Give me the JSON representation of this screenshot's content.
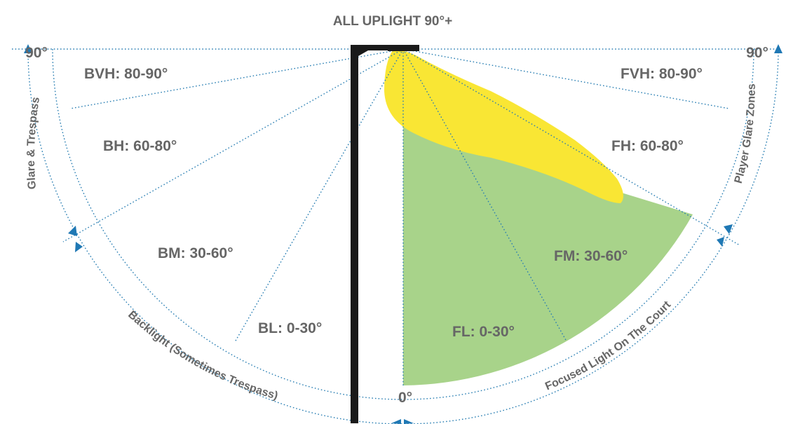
{
  "title": "ALL UPLIGHT 90°+",
  "colors": {
    "pole": "#1a1a1a",
    "focused_light": "#a8d38a",
    "glare_light": "#f9e634",
    "guide_lines": "#2a7fb3",
    "arrows": "#1f78b4",
    "text": "#666666"
  },
  "angles": {
    "left_90": "90°",
    "right_90": "90°",
    "bottom_0": "0°"
  },
  "back_zones": {
    "bvh": "BVH: 80-90°",
    "bh": "BH: 60-80°",
    "bm": "BM: 30-60°",
    "bl": "BL: 0-30°"
  },
  "front_zones": {
    "fvh": "FVH: 80-90°",
    "fh": "FH: 60-80°",
    "fm": "FM: 30-60°",
    "fl": "FL: 0-30°"
  },
  "arc_labels": {
    "glare_trespass": "Glare & Trespass",
    "backlight": "Backlight (Sometimes Trespass)",
    "focused": "Focused Light On The Court",
    "player_glare": "Player Glare Zones"
  }
}
